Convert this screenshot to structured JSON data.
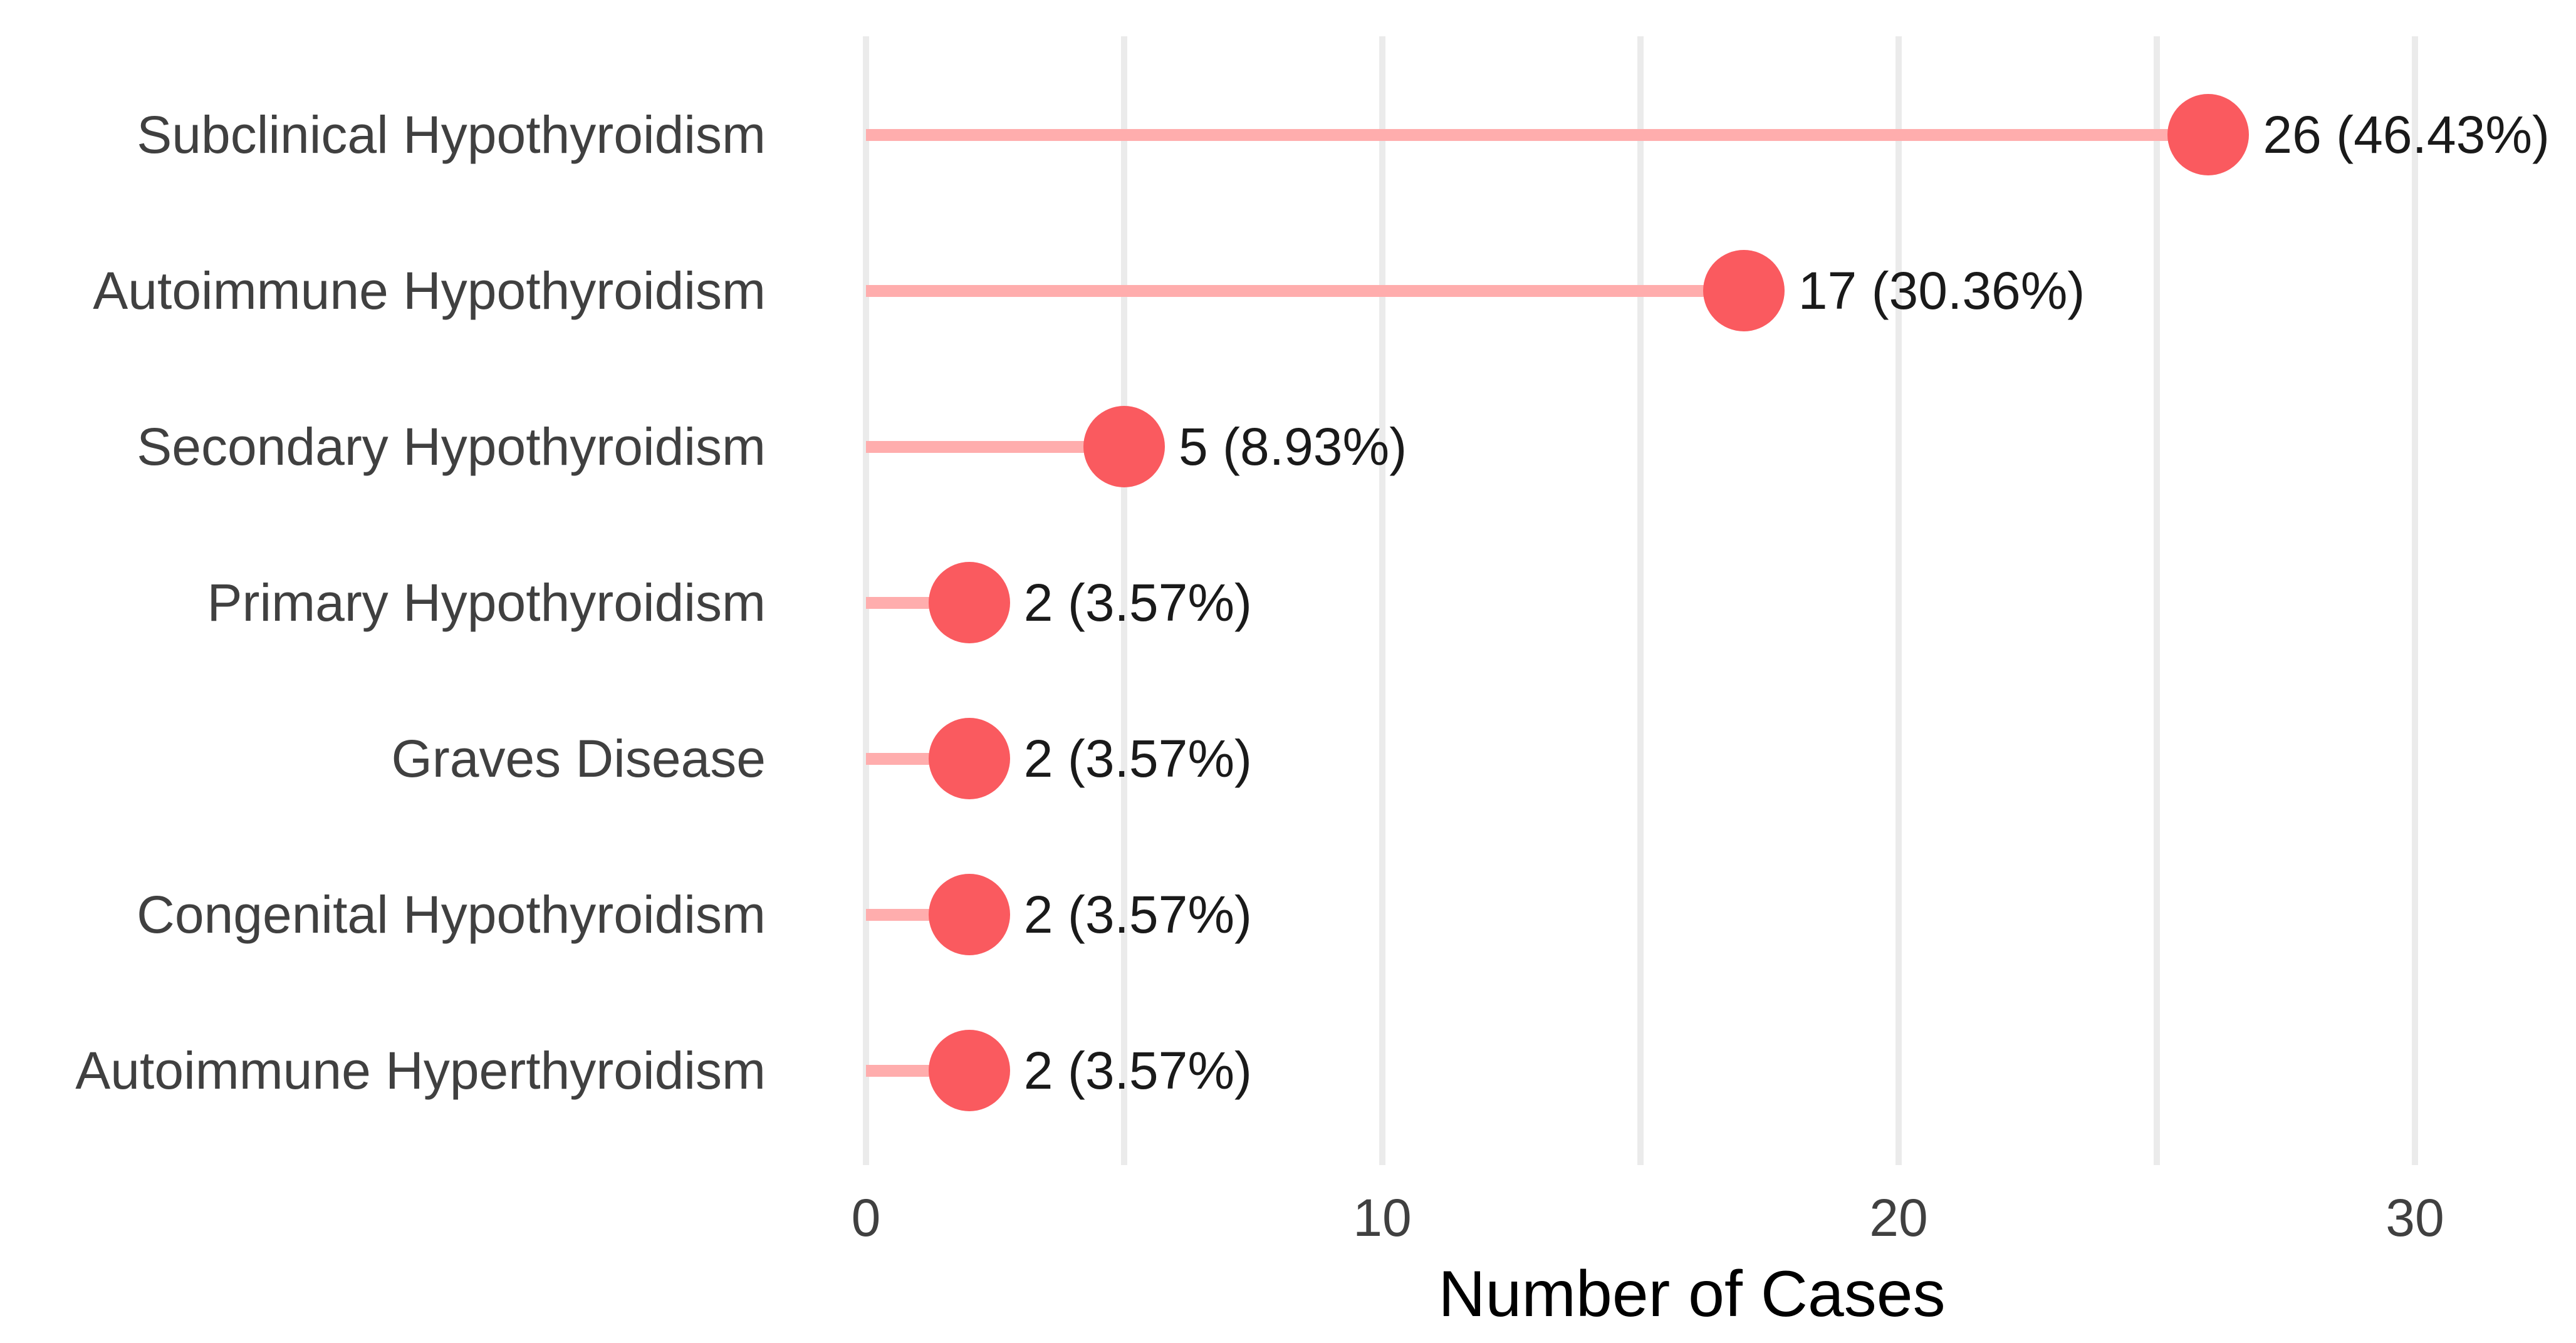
{
  "chart_data": {
    "type": "bar",
    "variant": "lollipop",
    "orientation": "horizontal",
    "xlabel": "Number of Cases",
    "ylabel": "",
    "categories": [
      "Subclinical Hypothyroidism",
      "Autoimmune Hypothyroidism",
      "Secondary Hypothyroidism",
      "Primary Hypothyroidism",
      "Graves Disease",
      "Congenital Hypothyroidism",
      "Autoimmune Hyperthyroidism"
    ],
    "values": [
      26,
      17,
      5,
      2,
      2,
      2,
      2
    ],
    "percents": [
      46.43,
      30.36,
      8.93,
      3.57,
      3.57,
      3.57,
      3.57
    ],
    "value_labels": [
      "26 (46.43%)",
      "17 (30.36%)",
      "5 (8.93%)",
      "2 (3.57%)",
      "2 (3.57%)",
      "2 (3.57%)",
      "2 (3.57%)"
    ],
    "x_ticks": [
      0,
      10,
      20,
      30
    ],
    "x_minor_gridlines": [
      5,
      15,
      25
    ],
    "xlim": [
      0,
      33
    ],
    "grid": "vertical-only",
    "legend": "none",
    "colors": {
      "point": "#FA5A5F",
      "stem": "#FFADAD",
      "gridline": "#EBEBEB",
      "axis_text": "#404040",
      "value_label": "#1A1A1A",
      "axis_title": "#000000",
      "background": "#FFFFFF"
    }
  }
}
